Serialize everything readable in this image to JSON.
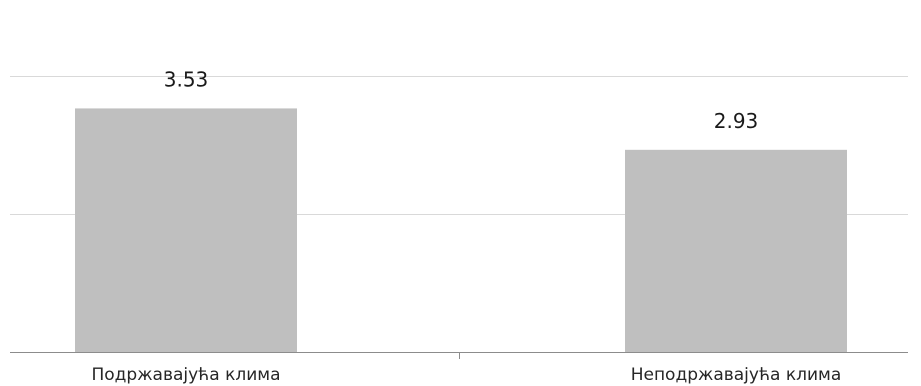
{
  "chart_data": {
    "type": "bar",
    "categories": [
      "Подржавајућа клима",
      "Неподржавајућа клима"
    ],
    "values": [
      3.53,
      2.93
    ],
    "data_labels": [
      "3.53",
      "2.93"
    ],
    "title": "",
    "xlabel": "",
    "ylabel": "",
    "ylim": [
      0,
      4
    ],
    "grid": true,
    "legend": "none",
    "colors": {
      "bar": "#bfbfbf",
      "gridline": "#d9d9d9",
      "axis": "#8c8c8c",
      "text": "#1a1a1a"
    }
  }
}
